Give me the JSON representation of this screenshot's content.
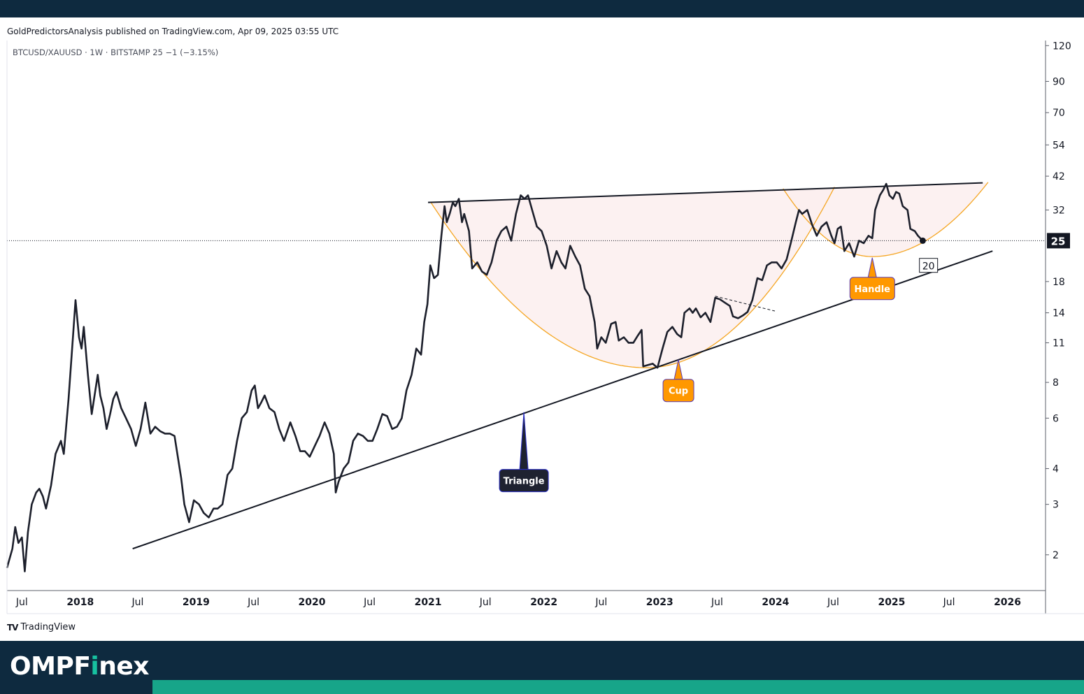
{
  "header": {
    "publisher_line": "GoldPredictorsAnalysis published on TradingView.com, Apr 09, 2025 03:55 UTC"
  },
  "footer": {
    "tradingview_label": "TradingView",
    "brand_name_pre": "OMPF",
    "brand_name_dot": "i",
    "brand_name_post": "nex",
    "brand_color": "#0e2a3f",
    "accent_color": "#17a589"
  },
  "chart_data": {
    "type": "line",
    "symbol_line": "BTCUSD/XAUUSD · 1W · BITSTAMP  25  −1 (−3.15%)",
    "scale": "log",
    "ylim": [
      1.5,
      125
    ],
    "y_ticks": [
      "120",
      "90",
      "70",
      "54",
      "42",
      "32",
      "25",
      "18",
      "14",
      "11",
      "8",
      "6",
      "4",
      "3",
      "2"
    ],
    "y_tick_values": [
      120,
      90,
      70,
      54,
      42,
      32,
      25,
      18,
      14,
      11,
      8,
      6,
      4,
      3,
      2
    ],
    "x_range": [
      "2017-05-15",
      "2026-05-01"
    ],
    "x_ticks": [
      {
        "label": "Jul",
        "date": "2017-07-01",
        "bold": false
      },
      {
        "label": "2018",
        "date": "2018-01-01",
        "bold": true
      },
      {
        "label": "Jul",
        "date": "2018-07-01",
        "bold": false
      },
      {
        "label": "2019",
        "date": "2019-01-01",
        "bold": true
      },
      {
        "label": "Jul",
        "date": "2019-07-01",
        "bold": false
      },
      {
        "label": "2020",
        "date": "2020-01-01",
        "bold": true
      },
      {
        "label": "Jul",
        "date": "2020-07-01",
        "bold": false
      },
      {
        "label": "2021",
        "date": "2021-01-01",
        "bold": true
      },
      {
        "label": "Jul",
        "date": "2021-07-01",
        "bold": false
      },
      {
        "label": "2022",
        "date": "2022-01-01",
        "bold": true
      },
      {
        "label": "Jul",
        "date": "2022-07-01",
        "bold": false
      },
      {
        "label": "2023",
        "date": "2023-01-01",
        "bold": true
      },
      {
        "label": "Jul",
        "date": "2023-07-01",
        "bold": false
      },
      {
        "label": "2024",
        "date": "2024-01-01",
        "bold": true
      },
      {
        "label": "Jul",
        "date": "2024-07-01",
        "bold": false
      },
      {
        "label": "2025",
        "date": "2025-01-01",
        "bold": true
      },
      {
        "label": "Jul",
        "date": "2025-07-01",
        "bold": false
      },
      {
        "label": "2026",
        "date": "2026-01-01",
        "bold": true
      }
    ],
    "last_price_label": "25",
    "last_price": 25,
    "target_label": "20",
    "target_value": 20.5,
    "series": [
      {
        "color": "#1c1f2b",
        "points": [
          [
            "2017-05-15",
            1.8
          ],
          [
            "2017-06-01",
            2.1
          ],
          [
            "2017-06-10",
            2.5
          ],
          [
            "2017-06-20",
            2.2
          ],
          [
            "2017-07-01",
            2.3
          ],
          [
            "2017-07-10",
            1.75
          ],
          [
            "2017-07-20",
            2.4
          ],
          [
            "2017-08-01",
            3.0
          ],
          [
            "2017-08-15",
            3.3
          ],
          [
            "2017-08-25",
            3.4
          ],
          [
            "2017-09-05",
            3.2
          ],
          [
            "2017-09-15",
            2.9
          ],
          [
            "2017-10-01",
            3.5
          ],
          [
            "2017-10-15",
            4.5
          ],
          [
            "2017-11-01",
            5.0
          ],
          [
            "2017-11-10",
            4.5
          ],
          [
            "2017-11-25",
            7.0
          ],
          [
            "2017-12-10",
            12.0
          ],
          [
            "2017-12-17",
            15.5
          ],
          [
            "2017-12-28",
            11.5
          ],
          [
            "2018-01-05",
            10.5
          ],
          [
            "2018-01-12",
            12.5
          ],
          [
            "2018-01-25",
            8.5
          ],
          [
            "2018-02-06",
            6.2
          ],
          [
            "2018-02-15",
            7.2
          ],
          [
            "2018-02-25",
            8.5
          ],
          [
            "2018-03-05",
            7.2
          ],
          [
            "2018-03-15",
            6.5
          ],
          [
            "2018-03-25",
            5.5
          ],
          [
            "2018-04-05",
            6.2
          ],
          [
            "2018-04-15",
            7.0
          ],
          [
            "2018-04-25",
            7.4
          ],
          [
            "2018-05-10",
            6.5
          ],
          [
            "2018-05-25",
            6.0
          ],
          [
            "2018-06-10",
            5.5
          ],
          [
            "2018-06-25",
            4.8
          ],
          [
            "2018-07-10",
            5.5
          ],
          [
            "2018-07-25",
            6.8
          ],
          [
            "2018-08-10",
            5.3
          ],
          [
            "2018-08-25",
            5.6
          ],
          [
            "2018-09-10",
            5.4
          ],
          [
            "2018-09-25",
            5.3
          ],
          [
            "2018-10-10",
            5.3
          ],
          [
            "2018-10-25",
            5.2
          ],
          [
            "2018-11-15",
            3.7
          ],
          [
            "2018-11-25",
            3.0
          ],
          [
            "2018-12-10",
            2.6
          ],
          [
            "2018-12-25",
            3.1
          ],
          [
            "2019-01-10",
            3.0
          ],
          [
            "2019-01-25",
            2.8
          ],
          [
            "2019-02-10",
            2.7
          ],
          [
            "2019-02-25",
            2.9
          ],
          [
            "2019-03-10",
            2.9
          ],
          [
            "2019-03-25",
            3.0
          ],
          [
            "2019-04-10",
            3.8
          ],
          [
            "2019-04-25",
            4.0
          ],
          [
            "2019-05-10",
            5.0
          ],
          [
            "2019-05-25",
            6.0
          ],
          [
            "2019-06-10",
            6.3
          ],
          [
            "2019-06-25",
            7.5
          ],
          [
            "2019-07-05",
            7.8
          ],
          [
            "2019-07-15",
            6.5
          ],
          [
            "2019-07-25",
            6.8
          ],
          [
            "2019-08-05",
            7.2
          ],
          [
            "2019-08-20",
            6.5
          ],
          [
            "2019-09-05",
            6.3
          ],
          [
            "2019-09-20",
            5.5
          ],
          [
            "2019-10-05",
            5.0
          ],
          [
            "2019-10-25",
            5.8
          ],
          [
            "2019-11-10",
            5.2
          ],
          [
            "2019-11-25",
            4.6
          ],
          [
            "2019-12-10",
            4.6
          ],
          [
            "2019-12-25",
            4.4
          ],
          [
            "2020-01-10",
            4.8
          ],
          [
            "2020-01-25",
            5.2
          ],
          [
            "2020-02-10",
            5.8
          ],
          [
            "2020-02-25",
            5.3
          ],
          [
            "2020-03-10",
            4.5
          ],
          [
            "2020-03-16",
            3.3
          ],
          [
            "2020-03-25",
            3.6
          ],
          [
            "2020-04-10",
            4.0
          ],
          [
            "2020-04-25",
            4.2
          ],
          [
            "2020-05-10",
            5.0
          ],
          [
            "2020-05-25",
            5.3
          ],
          [
            "2020-06-10",
            5.2
          ],
          [
            "2020-06-25",
            5.0
          ],
          [
            "2020-07-10",
            5.0
          ],
          [
            "2020-07-25",
            5.5
          ],
          [
            "2020-08-10",
            6.2
          ],
          [
            "2020-08-25",
            6.1
          ],
          [
            "2020-09-10",
            5.5
          ],
          [
            "2020-09-25",
            5.6
          ],
          [
            "2020-10-10",
            6.0
          ],
          [
            "2020-10-25",
            7.5
          ],
          [
            "2020-11-10",
            8.5
          ],
          [
            "2020-11-25",
            10.5
          ],
          [
            "2020-12-10",
            10.0
          ],
          [
            "2020-12-20",
            13.0
          ],
          [
            "2020-12-30",
            15.0
          ],
          [
            "2021-01-08",
            20.5
          ],
          [
            "2021-01-20",
            18.5
          ],
          [
            "2021-02-01",
            19.0
          ],
          [
            "2021-02-12",
            26.0
          ],
          [
            "2021-02-22",
            33.0
          ],
          [
            "2021-03-01",
            29.0
          ],
          [
            "2021-03-10",
            31.0
          ],
          [
            "2021-03-20",
            34.0
          ],
          [
            "2021-03-28",
            33.0
          ],
          [
            "2021-04-08",
            35.0
          ],
          [
            "2021-04-18",
            29.0
          ],
          [
            "2021-04-25",
            31.0
          ],
          [
            "2021-05-10",
            27.0
          ],
          [
            "2021-05-20",
            20.0
          ],
          [
            "2021-06-05",
            21.0
          ],
          [
            "2021-06-20",
            19.5
          ],
          [
            "2021-07-05",
            19.0
          ],
          [
            "2021-07-20",
            21.0
          ],
          [
            "2021-08-05",
            25.0
          ],
          [
            "2021-08-20",
            27.0
          ],
          [
            "2021-09-05",
            28.0
          ],
          [
            "2021-09-20",
            25.0
          ],
          [
            "2021-10-05",
            31.0
          ],
          [
            "2021-10-20",
            36.0
          ],
          [
            "2021-11-01",
            35.0
          ],
          [
            "2021-11-12",
            36.0
          ],
          [
            "2021-11-25",
            32.0
          ],
          [
            "2021-12-10",
            28.0
          ],
          [
            "2021-12-25",
            27.0
          ],
          [
            "2022-01-10",
            24.0
          ],
          [
            "2022-01-25",
            20.0
          ],
          [
            "2022-02-10",
            23.0
          ],
          [
            "2022-02-25",
            21.0
          ],
          [
            "2022-03-10",
            20.0
          ],
          [
            "2022-03-25",
            24.0
          ],
          [
            "2022-04-10",
            22.0
          ],
          [
            "2022-04-25",
            20.5
          ],
          [
            "2022-05-10",
            17.0
          ],
          [
            "2022-05-25",
            16.0
          ],
          [
            "2022-06-10",
            13.0
          ],
          [
            "2022-06-18",
            10.5
          ],
          [
            "2022-07-01",
            11.5
          ],
          [
            "2022-07-15",
            11.0
          ],
          [
            "2022-08-01",
            12.8
          ],
          [
            "2022-08-15",
            13.0
          ],
          [
            "2022-08-25",
            11.2
          ],
          [
            "2022-09-10",
            11.5
          ],
          [
            "2022-09-25",
            11.0
          ],
          [
            "2022-10-10",
            11.0
          ],
          [
            "2022-10-25",
            11.7
          ],
          [
            "2022-11-05",
            12.2
          ],
          [
            "2022-11-10",
            9.1
          ],
          [
            "2022-11-25",
            9.2
          ],
          [
            "2022-12-10",
            9.3
          ],
          [
            "2022-12-25",
            9.0
          ],
          [
            "2023-01-10",
            10.5
          ],
          [
            "2023-01-25",
            12.0
          ],
          [
            "2023-02-10",
            12.5
          ],
          [
            "2023-02-25",
            11.8
          ],
          [
            "2023-03-10",
            11.5
          ],
          [
            "2023-03-20",
            14.0
          ],
          [
            "2023-04-05",
            14.5
          ],
          [
            "2023-04-15",
            14.0
          ],
          [
            "2023-04-25",
            14.5
          ],
          [
            "2023-05-10",
            13.5
          ],
          [
            "2023-05-25",
            14.0
          ],
          [
            "2023-06-10",
            13.0
          ],
          [
            "2023-06-25",
            15.8
          ],
          [
            "2023-07-10",
            15.6
          ],
          [
            "2023-07-25",
            15.2
          ],
          [
            "2023-08-10",
            14.8
          ],
          [
            "2023-08-20",
            13.6
          ],
          [
            "2023-09-05",
            13.4
          ],
          [
            "2023-09-20",
            13.7
          ],
          [
            "2023-10-05",
            14.1
          ],
          [
            "2023-10-20",
            15.5
          ],
          [
            "2023-11-05",
            18.5
          ],
          [
            "2023-11-20",
            18.2
          ],
          [
            "2023-12-05",
            20.5
          ],
          [
            "2023-12-20",
            21.0
          ],
          [
            "2024-01-05",
            21.0
          ],
          [
            "2024-01-20",
            20.0
          ],
          [
            "2024-02-05",
            21.5
          ],
          [
            "2024-02-20",
            25.0
          ],
          [
            "2024-03-05",
            29.0
          ],
          [
            "2024-03-15",
            32.0
          ],
          [
            "2024-03-25",
            31.0
          ],
          [
            "2024-04-10",
            32.0
          ],
          [
            "2024-04-25",
            28.5
          ],
          [
            "2024-05-10",
            26.0
          ],
          [
            "2024-05-25",
            28.0
          ],
          [
            "2024-06-10",
            29.0
          ],
          [
            "2024-06-25",
            26.0
          ],
          [
            "2024-07-05",
            24.5
          ],
          [
            "2024-07-15",
            27.5
          ],
          [
            "2024-07-25",
            28.0
          ],
          [
            "2024-08-05",
            23.0
          ],
          [
            "2024-08-20",
            24.5
          ],
          [
            "2024-09-05",
            22.0
          ],
          [
            "2024-09-20",
            25.0
          ],
          [
            "2024-10-05",
            24.5
          ],
          [
            "2024-10-20",
            26.0
          ],
          [
            "2024-11-01",
            25.5
          ],
          [
            "2024-11-10",
            32.0
          ],
          [
            "2024-11-25",
            36.0
          ],
          [
            "2024-12-05",
            37.5
          ],
          [
            "2024-12-15",
            39.5
          ],
          [
            "2024-12-25",
            36.0
          ],
          [
            "2025-01-05",
            35.0
          ],
          [
            "2025-01-15",
            37.0
          ],
          [
            "2025-01-25",
            36.5
          ],
          [
            "2025-02-05",
            33.0
          ],
          [
            "2025-02-20",
            32.0
          ],
          [
            "2025-03-01",
            27.5
          ],
          [
            "2025-03-15",
            27.0
          ],
          [
            "2025-03-25",
            26.0
          ],
          [
            "2025-04-09",
            25.0
          ]
        ]
      }
    ],
    "upper_trendline": [
      [
        "2021-01-01",
        34.0
      ],
      [
        "2025-10-15",
        39.8
      ]
    ],
    "lower_trendline": [
      [
        "2018-06-15",
        2.1
      ],
      [
        "2025-11-15",
        23.0
      ]
    ],
    "cup_arc": {
      "left": [
        "2021-01-10",
        34.0
      ],
      "bottom": [
        "2022-11-20",
        9.0
      ],
      "right": [
        "2024-07-05",
        38.5
      ]
    },
    "handle_arc": {
      "left": [
        "2024-01-25",
        38.0
      ],
      "bottom": [
        "2024-11-01",
        22.0
      ],
      "right": [
        "2025-11-01",
        40.0
      ]
    },
    "dashed_segment": [
      [
        "2023-06-25",
        16.0
      ],
      [
        "2023-12-30",
        14.2
      ]
    ],
    "annotations": [
      {
        "text": "Triangle",
        "date": "2021-10-30",
        "value": 6.3,
        "style": "dark"
      },
      {
        "text": "Cup",
        "date": "2023-03-01",
        "value": 9.6,
        "style": "orange"
      },
      {
        "text": "Handle",
        "date": "2024-11-01",
        "value": 21.8,
        "style": "orange"
      }
    ]
  }
}
